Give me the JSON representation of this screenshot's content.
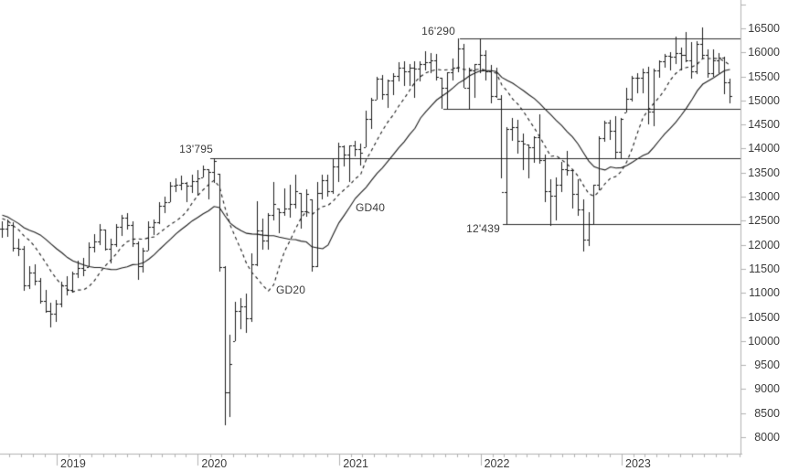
{
  "chart_data": {
    "type": "bar",
    "subtype": "ohlc-weekly-bars",
    "title": "",
    "xlabel": "",
    "ylabel": "",
    "x_axis": {
      "year_labels": [
        "2019",
        "2020",
        "2021",
        "2022",
        "2023"
      ]
    },
    "y_axis": {
      "min": 8000,
      "max": 16500,
      "tick_step": 500,
      "tick_top_unlabeled": 17000,
      "tick_labels": [
        16500,
        16000,
        15500,
        15000,
        14500,
        14000,
        13500,
        13000,
        12500,
        12000,
        11500,
        11000,
        10500,
        10000,
        9500,
        9000,
        8500,
        8000
      ]
    },
    "start_date": "2018-08-13",
    "bar_interval_days": 14,
    "bars": [
      [
        12150,
        12490,
        12340
      ],
      [
        12160,
        12530,
        12420
      ],
      [
        11860,
        12460,
        11940
      ],
      [
        11770,
        12130,
        11910
      ],
      [
        11050,
        11980,
        11150
      ],
      [
        11080,
        11560,
        11430
      ],
      [
        11150,
        11600,
        11250
      ],
      [
        10770,
        11310,
        10830
      ],
      [
        10580,
        11060,
        10620
      ],
      [
        10280,
        10800,
        10560
      ],
      [
        10390,
        10850,
        10770
      ],
      [
        10700,
        11230,
        11150
      ],
      [
        10950,
        11350,
        11060
      ],
      [
        11000,
        11450,
        11400
      ],
      [
        11300,
        11670,
        11520
      ],
      [
        11350,
        11720,
        11480
      ],
      [
        11540,
        12050,
        11960
      ],
      [
        11850,
        12230,
        12060
      ],
      [
        12000,
        12440,
        12310
      ],
      [
        11870,
        12310,
        11920
      ],
      [
        11620,
        12120,
        12010
      ],
      [
        11950,
        12440,
        12380
      ],
      [
        12190,
        12630,
        12570
      ],
      [
        12310,
        12660,
        12420
      ],
      [
        11960,
        12490,
        12040
      ],
      [
        11270,
        12060,
        11560
      ],
      [
        11430,
        11940,
        11880
      ],
      [
        11870,
        12480,
        12380
      ],
      [
        12210,
        12530,
        12470
      ],
      [
        12440,
        12890,
        12820
      ],
      [
        12650,
        13000,
        12890
      ],
      [
        12880,
        13300,
        13230
      ],
      [
        13090,
        13380,
        13250
      ],
      [
        13130,
        13430,
        13280
      ],
      [
        12890,
        13310,
        13220
      ],
      [
        13070,
        13450,
        13320
      ],
      [
        13020,
        13560,
        13385
      ],
      [
        13400,
        13640,
        13576
      ],
      [
        12950,
        13570,
        13514
      ],
      [
        13280,
        13795,
        13740
      ],
      [
        11450,
        13480,
        11542
      ],
      [
        8255,
        11560,
        8929
      ],
      [
        8420,
        10138,
        9526
      ],
      [
        9990,
        10820,
        10626
      ],
      [
        10240,
        10890,
        10720
      ],
      [
        10160,
        10980,
        10465
      ],
      [
        10400,
        11813,
        11587
      ],
      [
        11550,
        12913,
        12290
      ],
      [
        11890,
        12550,
        12090
      ],
      [
        11900,
        12650,
        12630
      ],
      [
        12500,
        13314,
        12840
      ],
      [
        12250,
        12750,
        12670
      ],
      [
        12600,
        13180,
        12760
      ],
      [
        12570,
        13240,
        12840
      ],
      [
        12760,
        13460,
        13110
      ],
      [
        12340,
        13070,
        12690
      ],
      [
        12590,
        13150,
        13050
      ],
      [
        11450,
        12940,
        11560
      ],
      [
        11530,
        13300,
        13080
      ],
      [
        12950,
        13450,
        13340
      ],
      [
        13010,
        13450,
        13110
      ],
      [
        13050,
        13780,
        13630
      ],
      [
        13310,
        14130,
        14050
      ],
      [
        13620,
        14060,
        13870
      ],
      [
        13310,
        14060,
        14060
      ],
      [
        13830,
        14170,
        13990
      ],
      [
        13640,
        14110,
        13920
      ],
      [
        14020,
        14780,
        14620
      ],
      [
        14400,
        15060,
        15010
      ],
      [
        15010,
        15500,
        15460
      ],
      [
        15020,
        15530,
        15140
      ],
      [
        14850,
        15440,
        15420
      ],
      [
        15120,
        15570,
        15520
      ],
      [
        15390,
        15800,
        15690
      ],
      [
        15310,
        15810,
        15600
      ],
      [
        15300,
        15750,
        15690
      ],
      [
        15050,
        15820,
        15670
      ],
      [
        15400,
        15810,
        15760
      ],
      [
        15620,
        16030,
        15800
      ],
      [
        15560,
        15990,
        15840
      ],
      [
        15420,
        15970,
        15490
      ],
      [
        14820,
        15480,
        15260
      ],
      [
        14820,
        15590,
        15587
      ],
      [
        15420,
        15880,
        15690
      ],
      [
        15590,
        16290,
        16090
      ],
      [
        15260,
        16180,
        15260
      ],
      [
        14810,
        15680,
        15620
      ],
      [
        15060,
        15760,
        15750
      ],
      [
        15570,
        16285,
        15948
      ],
      [
        15410,
        16040,
        15604
      ],
      [
        14950,
        15740,
        15100
      ],
      [
        15060,
        15690,
        15043
      ],
      [
        13380,
        15120,
        13095
      ],
      [
        12439,
        14440,
        14413
      ],
      [
        14170,
        14630,
        14446
      ],
      [
        13890,
        14600,
        14160
      ],
      [
        13560,
        14320,
        14098
      ],
      [
        13380,
        14080,
        14028
      ],
      [
        13710,
        14260,
        14240
      ],
      [
        13690,
        14710,
        13762
      ],
      [
        12890,
        13870,
        13118
      ],
      [
        12390,
        13370,
        13015
      ],
      [
        12510,
        13400,
        13250
      ],
      [
        13090,
        13730,
        13574
      ],
      [
        13430,
        13950,
        13545
      ],
      [
        12760,
        13580,
        13050
      ],
      [
        12600,
        13360,
        12741
      ],
      [
        11862,
        12940,
        12114
      ],
      [
        11970,
        12680,
        12438
      ],
      [
        12440,
        13250,
        13240
      ],
      [
        13130,
        14260,
        14225
      ],
      [
        14140,
        14580,
        14540
      ],
      [
        14180,
        14590,
        14370
      ],
      [
        13790,
        14680,
        13940
      ],
      [
        13790,
        14630,
        14610
      ],
      [
        14750,
        15270,
        15033
      ],
      [
        14970,
        15520,
        15476
      ],
      [
        15150,
        15560,
        15482
      ],
      [
        15150,
        15660,
        15578
      ],
      [
        14500,
        15710,
        14768
      ],
      [
        14460,
        15660,
        15629
      ],
      [
        15480,
        15830,
        15808
      ],
      [
        15690,
        15960,
        15922
      ],
      [
        15630,
        16010,
        15914
      ],
      [
        15750,
        16330,
        15984
      ],
      [
        15620,
        16110,
        15950
      ],
      [
        15800,
        16427,
        15830
      ],
      [
        15460,
        16210,
        15603
      ],
      [
        15550,
        16240,
        16177
      ],
      [
        15870,
        16528,
        15952
      ],
      [
        15470,
        16060,
        15574
      ],
      [
        15500,
        16060,
        15840
      ],
      [
        15570,
        15990,
        15893
      ],
      [
        15139,
        15910,
        15387
      ],
      [
        14950,
        15460,
        15100
      ]
    ],
    "warmup_closes": [
      13050,
      13180,
      13300,
      13240,
      12900,
      12480,
      12100,
      11960,
      12380,
      12600,
      12720,
      12860,
      12980,
      12760,
      12420,
      12360,
      12580,
      12460,
      12310,
      12380
    ],
    "moving_averages": [
      {
        "label": "GD20",
        "window_bars": 10,
        "style": "dashed"
      },
      {
        "label": "GD40",
        "window_bars": 20,
        "style": "solid"
      }
    ],
    "horizontal_lines": [
      {
        "label": "16'290",
        "value": 16290,
        "start_date": "2021-11-08"
      },
      {
        "label": "",
        "value": 14820,
        "start_date": "2021-09-27"
      },
      {
        "label": "13'795",
        "value": 13795,
        "start_date": "2020-02-03"
      },
      {
        "label": "12'439",
        "value": 12439,
        "start_date": "2022-02-28"
      }
    ],
    "colors": {
      "background": "#ffffff",
      "bars": "#1c1c1c",
      "moving_average": "#1c1c1c",
      "level_lines": "#2b2b2b",
      "axis": "#b2b2b2",
      "text": "#3c3c3c"
    }
  }
}
